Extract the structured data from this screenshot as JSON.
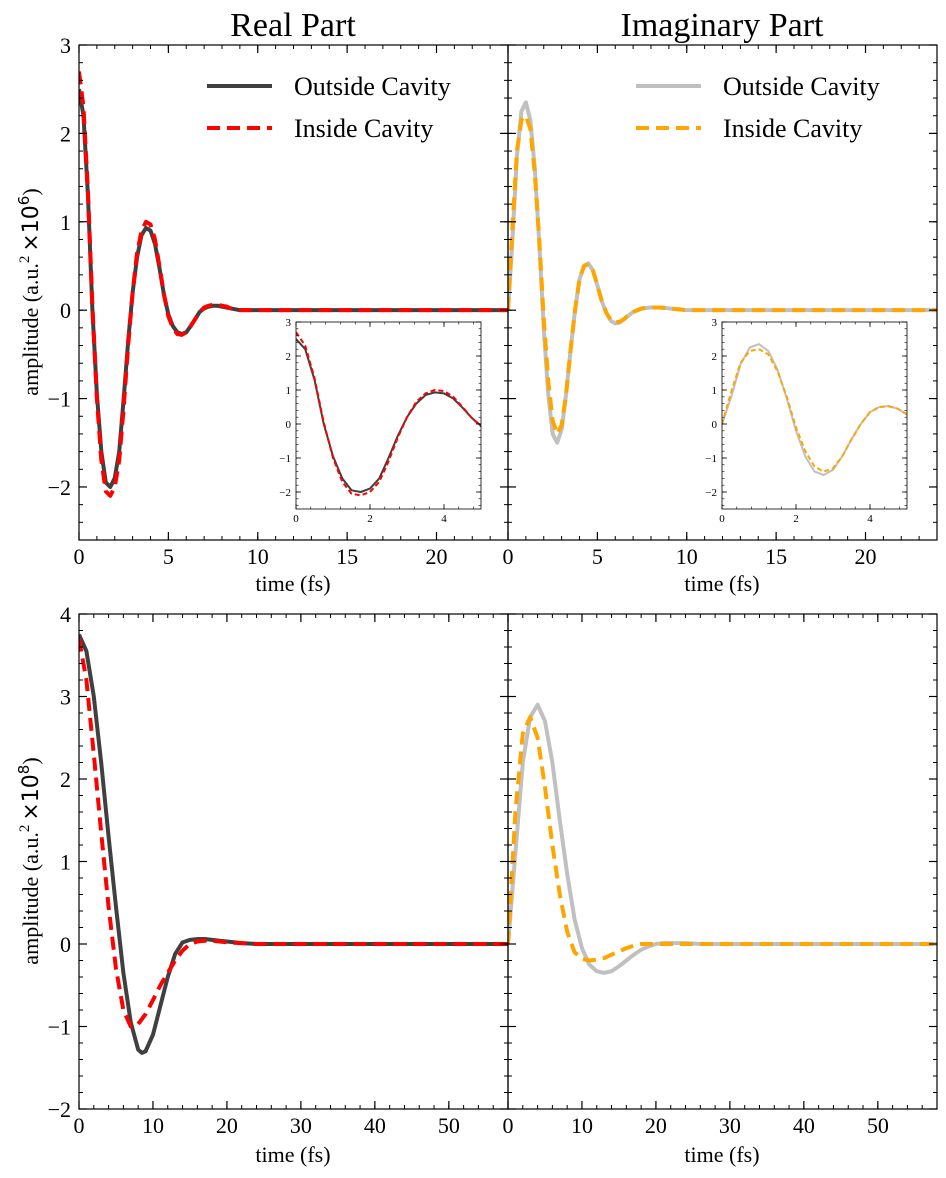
{
  "colors": {
    "real_outside": "#404040",
    "real_inside": "#ff0000",
    "imag_outside": "#c0c0c0",
    "imag_inside": "#ffa500"
  },
  "titles": {
    "real": "Real Part",
    "imaginary": "Imaginary Part"
  },
  "legend": {
    "real": {
      "outside": "Outside Cavity",
      "inside": "Inside Cavity"
    },
    "imaginary": {
      "outside": "Outside Cavity",
      "inside": "Inside Cavity"
    }
  },
  "xlabel": "time (fs)",
  "ylabel_top": {
    "main": "amplitude (a.u.",
    "exp2": "2",
    "times": "×10",
    "exp": "6",
    "close": ")"
  },
  "ylabel_bottom": {
    "main": "amplitude (a.u.",
    "exp2": "2",
    "times": "×10",
    "exp": "8",
    "close": ")"
  },
  "chart_data": [
    {
      "id": "top_real",
      "type": "line",
      "title": "Real Part",
      "xlabel": "time (fs)",
      "ylabel": "amplitude (a.u.^2 ×10^6)",
      "xlim": [
        0,
        24
      ],
      "ylim": [
        -2.6,
        3
      ],
      "xticks": [
        0,
        5,
        10,
        15,
        20
      ],
      "yticks": [
        -2,
        -1,
        0,
        1,
        2,
        3
      ],
      "series": [
        {
          "name": "Outside Cavity",
          "style": "solid",
          "x": [
            0,
            0.25,
            0.5,
            0.75,
            1,
            1.25,
            1.5,
            1.75,
            2,
            2.25,
            2.5,
            2.75,
            3,
            3.25,
            3.5,
            3.75,
            4,
            4.25,
            4.5,
            4.75,
            5,
            5.25,
            5.5,
            5.75,
            6,
            6.25,
            6.5,
            6.75,
            7,
            7.25,
            7.5,
            7.75,
            8,
            8.25,
            8.5,
            8.75,
            9,
            9.5,
            10,
            11,
            12,
            14,
            24
          ],
          "y": [
            2.5,
            2.2,
            1.3,
            0.0,
            -0.95,
            -1.6,
            -1.95,
            -2.0,
            -1.9,
            -1.6,
            -1.0,
            -0.35,
            0.2,
            0.6,
            0.85,
            0.93,
            0.9,
            0.75,
            0.48,
            0.18,
            -0.05,
            -0.18,
            -0.25,
            -0.27,
            -0.25,
            -0.18,
            -0.1,
            -0.02,
            0.02,
            0.04,
            0.05,
            0.05,
            0.04,
            0.03,
            0.02,
            0.01,
            0.0,
            0.0,
            0.0,
            0.0,
            0.0,
            0.0,
            0.0
          ]
        },
        {
          "name": "Inside Cavity",
          "style": "dashed",
          "x": [
            0,
            0.25,
            0.5,
            0.75,
            1,
            1.25,
            1.5,
            1.75,
            2,
            2.25,
            2.5,
            2.75,
            3,
            3.25,
            3.5,
            3.75,
            4,
            4.25,
            4.5,
            4.75,
            5,
            5.25,
            5.5,
            5.75,
            6,
            6.25,
            6.5,
            6.75,
            7,
            7.25,
            7.5,
            7.75,
            8,
            8.25,
            8.5,
            8.75,
            9,
            9.5,
            10,
            11,
            12,
            14,
            24
          ],
          "y": [
            2.7,
            2.3,
            1.35,
            0.05,
            -1.0,
            -1.7,
            -2.05,
            -2.1,
            -2.0,
            -1.7,
            -1.1,
            -0.4,
            0.2,
            0.65,
            0.9,
            1.0,
            0.97,
            0.8,
            0.5,
            0.18,
            -0.07,
            -0.2,
            -0.27,
            -0.28,
            -0.25,
            -0.18,
            -0.1,
            -0.02,
            0.03,
            0.05,
            0.06,
            0.06,
            0.05,
            0.04,
            0.02,
            0.01,
            0.0,
            0.0,
            0.0,
            0.0,
            0.0,
            0.0,
            0.0
          ]
        }
      ],
      "inset": {
        "xlim": [
          0,
          5
        ],
        "ylim": [
          -2.5,
          3
        ],
        "xticks": [
          0,
          2,
          4
        ],
        "yticks": [
          -2,
          -1,
          0,
          1,
          2,
          3
        ]
      }
    },
    {
      "id": "top_imag",
      "type": "line",
      "title": "Imaginary Part",
      "xlabel": "time (fs)",
      "ylabel": "",
      "xlim": [
        0,
        24
      ],
      "ylim": [
        -2.6,
        3
      ],
      "xticks": [
        0,
        5,
        10,
        15,
        20
      ],
      "yticks": [],
      "series": [
        {
          "name": "Outside Cavity",
          "style": "solid",
          "x": [
            0,
            0.25,
            0.5,
            0.75,
            1,
            1.25,
            1.5,
            1.75,
            2,
            2.25,
            2.5,
            2.75,
            3,
            3.25,
            3.5,
            3.75,
            4,
            4.25,
            4.5,
            4.75,
            5,
            5.25,
            5.5,
            5.75,
            6,
            6.25,
            6.5,
            6.75,
            7,
            7.5,
            8,
            8.5,
            9,
            9.5,
            10,
            11,
            12,
            14,
            24
          ],
          "y": [
            0.0,
            0.8,
            1.75,
            2.25,
            2.35,
            2.15,
            1.6,
            0.75,
            -0.2,
            -0.95,
            -1.4,
            -1.5,
            -1.35,
            -0.95,
            -0.45,
            0.0,
            0.35,
            0.5,
            0.53,
            0.45,
            0.28,
            0.1,
            -0.03,
            -0.12,
            -0.15,
            -0.14,
            -0.1,
            -0.06,
            -0.02,
            0.02,
            0.03,
            0.03,
            0.02,
            0.01,
            0.0,
            0.0,
            0.0,
            0.0,
            0.0
          ]
        },
        {
          "name": "Inside Cavity",
          "style": "dashed",
          "x": [
            0,
            0.25,
            0.5,
            0.75,
            1,
            1.25,
            1.5,
            1.75,
            2,
            2.25,
            2.5,
            2.75,
            3,
            3.25,
            3.5,
            3.75,
            4,
            4.25,
            4.5,
            4.75,
            5,
            5.25,
            5.5,
            5.75,
            6,
            6.25,
            6.5,
            6.75,
            7,
            7.5,
            8,
            8.5,
            9,
            9.5,
            10,
            11,
            12,
            14,
            24
          ],
          "y": [
            0.0,
            0.95,
            1.8,
            2.15,
            2.2,
            2.05,
            1.55,
            0.8,
            -0.1,
            -0.8,
            -1.25,
            -1.4,
            -1.3,
            -0.95,
            -0.45,
            0.0,
            0.35,
            0.5,
            0.52,
            0.45,
            0.28,
            0.1,
            -0.03,
            -0.11,
            -0.14,
            -0.13,
            -0.1,
            -0.05,
            -0.02,
            0.02,
            0.03,
            0.03,
            0.02,
            0.01,
            0.0,
            0.0,
            0.0,
            0.0,
            0.0
          ]
        }
      ],
      "inset": {
        "xlim": [
          0,
          5
        ],
        "ylim": [
          -2.5,
          3
        ],
        "xticks": [
          0,
          2,
          4
        ],
        "yticks": [
          -2,
          -1,
          0,
          1,
          2,
          3
        ]
      }
    },
    {
      "id": "bottom_real",
      "type": "line",
      "title": "",
      "xlabel": "time (fs)",
      "ylabel": "amplitude (a.u.^2 ×10^8)",
      "xlim": [
        0,
        58
      ],
      "ylim": [
        -2,
        4
      ],
      "xticks": [
        0,
        10,
        20,
        30,
        40,
        50
      ],
      "yticks": [
        -2,
        -1,
        0,
        1,
        2,
        3,
        4
      ],
      "series": [
        {
          "name": "Outside Cavity",
          "style": "solid",
          "x": [
            0,
            1,
            2,
            3,
            4,
            5,
            6,
            7,
            8,
            8.5,
            9,
            10,
            11,
            12,
            13,
            14,
            15,
            16,
            17,
            18,
            19,
            20,
            22,
            24,
            26,
            30,
            58
          ],
          "y": [
            3.75,
            3.55,
            3.0,
            2.2,
            1.3,
            0.45,
            -0.35,
            -0.95,
            -1.28,
            -1.32,
            -1.3,
            -1.1,
            -0.75,
            -0.4,
            -0.12,
            0.02,
            0.05,
            0.06,
            0.06,
            0.05,
            0.04,
            0.03,
            0.01,
            0.0,
            0.0,
            0.0,
            0.0
          ]
        },
        {
          "name": "Inside Cavity",
          "style": "dashed",
          "x": [
            0,
            1,
            2,
            3,
            4,
            5,
            6,
            7,
            8,
            9,
            10,
            11,
            12,
            13,
            14,
            15,
            16,
            17,
            18,
            19,
            20,
            22,
            24,
            26,
            30,
            58
          ],
          "y": [
            3.7,
            3.2,
            2.3,
            1.35,
            0.45,
            -0.3,
            -0.8,
            -1.0,
            -0.97,
            -0.85,
            -0.68,
            -0.5,
            -0.35,
            -0.2,
            -0.08,
            0.0,
            0.03,
            0.04,
            0.04,
            0.03,
            0.02,
            0.01,
            0.0,
            0.0,
            0.0,
            0.0
          ]
        }
      ]
    },
    {
      "id": "bottom_imag",
      "type": "line",
      "title": "",
      "xlabel": "time (fs)",
      "ylabel": "",
      "xlim": [
        0,
        58
      ],
      "ylim": [
        -2,
        4
      ],
      "xticks": [
        0,
        10,
        20,
        30,
        40,
        50
      ],
      "yticks": [],
      "series": [
        {
          "name": "Outside Cavity",
          "style": "solid",
          "x": [
            0,
            1,
            2,
            3,
            4,
            5,
            6,
            7,
            8,
            9,
            10,
            11,
            12,
            13,
            14,
            15,
            16,
            17,
            18,
            19,
            20,
            21,
            22,
            24,
            26,
            30,
            58
          ],
          "y": [
            0.0,
            1.1,
            2.2,
            2.75,
            2.9,
            2.7,
            2.2,
            1.5,
            0.85,
            0.3,
            -0.05,
            -0.25,
            -0.33,
            -0.35,
            -0.33,
            -0.27,
            -0.2,
            -0.13,
            -0.07,
            -0.03,
            0.0,
            0.01,
            0.01,
            0.01,
            0.0,
            0.0,
            0.0
          ]
        },
        {
          "name": "Inside Cavity",
          "style": "dashed",
          "x": [
            0,
            1,
            2,
            3,
            4,
            5,
            6,
            7,
            8,
            9,
            10,
            11,
            12,
            13,
            14,
            15,
            16,
            17,
            18,
            19,
            20,
            22,
            24,
            26,
            30,
            58
          ],
          "y": [
            0.0,
            1.6,
            2.55,
            2.75,
            2.5,
            1.9,
            1.2,
            0.6,
            0.15,
            -0.1,
            -0.18,
            -0.2,
            -0.19,
            -0.17,
            -0.13,
            -0.09,
            -0.05,
            -0.02,
            0.0,
            0.0,
            0.0,
            0.0,
            0.0,
            0.0,
            0.0,
            0.0
          ]
        }
      ]
    }
  ]
}
